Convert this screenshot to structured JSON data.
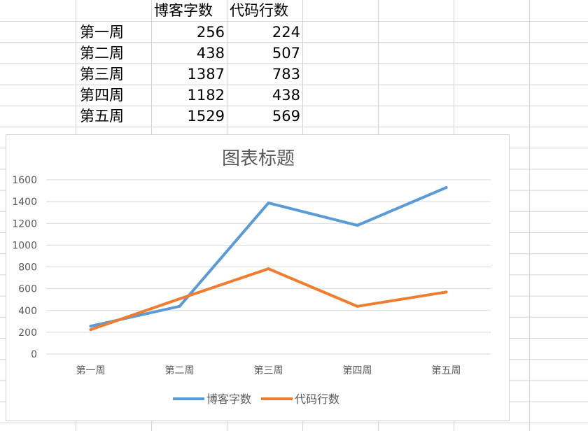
{
  "sheet": {
    "headers": [
      "",
      "博客字数",
      "代码行数"
    ],
    "rows": [
      {
        "label": "第一周",
        "blog": "256",
        "code": "224"
      },
      {
        "label": "第二周",
        "blog": "438",
        "code": "507"
      },
      {
        "label": "第三周",
        "blog": "1387",
        "code": "783"
      },
      {
        "label": "第四周",
        "blog": "1182",
        "code": "438"
      },
      {
        "label": "第五周",
        "blog": "1529",
        "code": "569"
      }
    ]
  },
  "chart_data": {
    "type": "line",
    "title": "图表标题",
    "categories": [
      "第一周",
      "第二周",
      "第三周",
      "第四周",
      "第五周"
    ],
    "series": [
      {
        "name": "博客字数",
        "values": [
          256,
          438,
          1387,
          1182,
          1529
        ],
        "color": "#5b9bd5"
      },
      {
        "name": "代码行数",
        "values": [
          224,
          507,
          783,
          438,
          569
        ],
        "color": "#ed7d31"
      }
    ],
    "ylim": [
      0,
      1600
    ],
    "yticks": [
      "0",
      "200",
      "400",
      "600",
      "800",
      "1000",
      "1200",
      "1400",
      "1600"
    ],
    "grid": true,
    "legend": "bottom",
    "gridline_color": "#d9d9d9"
  }
}
